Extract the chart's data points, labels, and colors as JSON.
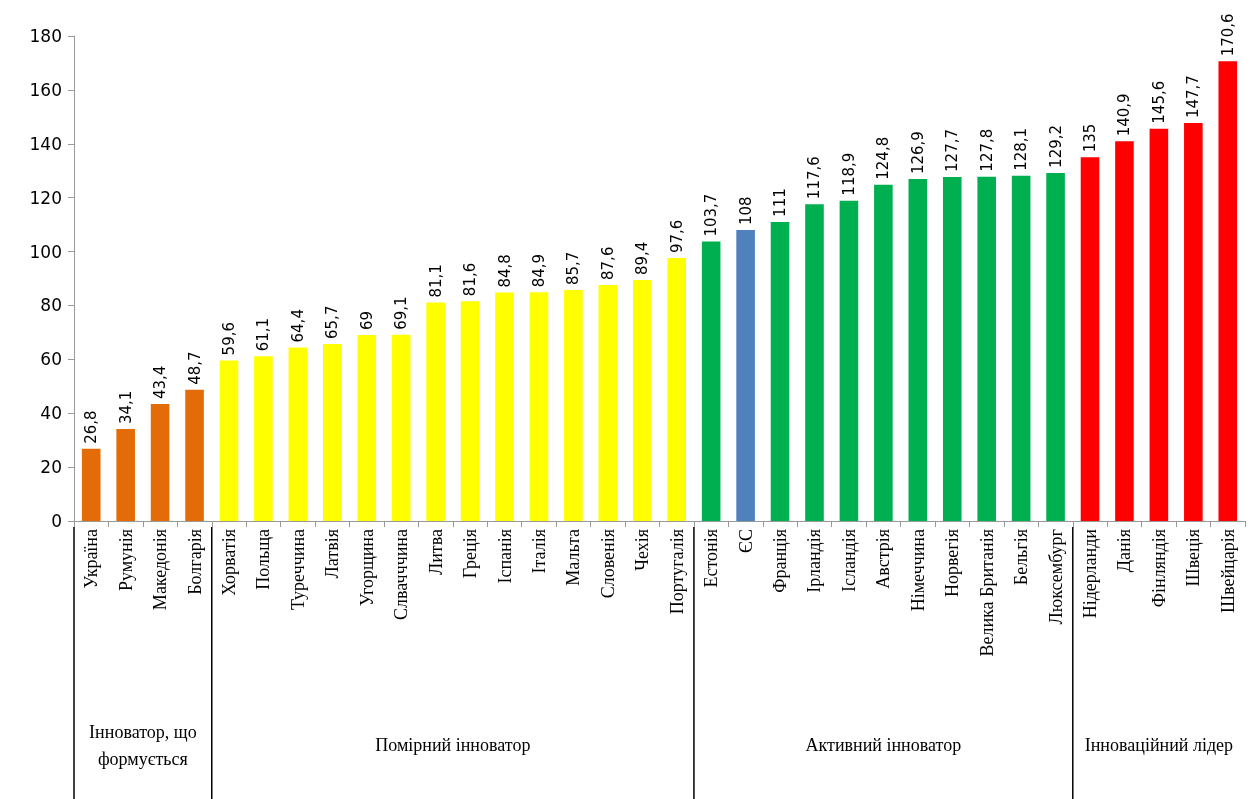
{
  "chart_data": {
    "type": "bar",
    "categories": [
      "Україна",
      "Румунія",
      "Македонія",
      "Болгарія",
      "Хорватія",
      "Польща",
      "Туреччина",
      "Латвія",
      "Угорщина",
      "Слвачччина",
      "Литва",
      "Греція",
      "Іспанія",
      "Італія",
      "Мальта",
      "Словенія",
      "Чехія",
      "Португалія",
      "Естонія",
      "ЄС",
      "Франція",
      "Ірландія",
      "Ісландія",
      "Австрія",
      "Німеччина",
      "Норвегія",
      "Велика Британія",
      "Бельгія",
      "Люксембург",
      "Нідерланди",
      "Данія",
      "Фінляндія",
      "Швеція",
      "Швейцарія"
    ],
    "values": [
      26.8,
      34.1,
      43.4,
      48.7,
      59.6,
      61.1,
      64.4,
      65.7,
      69,
      69.1,
      81.1,
      81.6,
      84.8,
      84.9,
      85.7,
      87.6,
      89.4,
      97.6,
      103.7,
      108,
      111,
      117.6,
      118.9,
      124.8,
      126.9,
      127.7,
      127.8,
      128.1,
      129.2,
      135,
      140.9,
      145.6,
      147.7,
      170.6
    ],
    "value_labels": [
      "26,8",
      "34,1",
      "43,4",
      "48,7",
      "59,6",
      "61,1",
      "64,4",
      "65,7",
      "69",
      "69,1",
      "81,1",
      "81,6",
      "84,8",
      "84,9",
      "85,7",
      "87,6",
      "89,4",
      "97,6",
      "103,7",
      "108",
      "111",
      "117,6",
      "118,9",
      "124,8",
      "126,9",
      "127,7",
      "127,8",
      "128,1",
      "129,2",
      "135",
      "140,9",
      "145,6",
      "147,7",
      "170,6"
    ],
    "colors": [
      "#e36c09",
      "#e36c09",
      "#e36c09",
      "#e36c09",
      "#ffff00",
      "#ffff00",
      "#ffff00",
      "#ffff00",
      "#ffff00",
      "#ffff00",
      "#ffff00",
      "#ffff00",
      "#ffff00",
      "#ffff00",
      "#ffff00",
      "#ffff00",
      "#ffff00",
      "#ffff00",
      "#00b050",
      "#4f81bd",
      "#00b050",
      "#00b050",
      "#00b050",
      "#00b050",
      "#00b050",
      "#00b050",
      "#00b050",
      "#00b050",
      "#00b050",
      "#ff0000",
      "#ff0000",
      "#ff0000",
      "#ff0000",
      "#ff0000"
    ],
    "ylim": [
      0,
      180
    ],
    "yticks": [
      0,
      20,
      40,
      60,
      80,
      100,
      120,
      140,
      160,
      180
    ],
    "grid": false,
    "annotations": [
      "Інноватор, що формується",
      "Помірний інноватор",
      "Активний інноватор",
      "Інноваційний лідер"
    ]
  }
}
